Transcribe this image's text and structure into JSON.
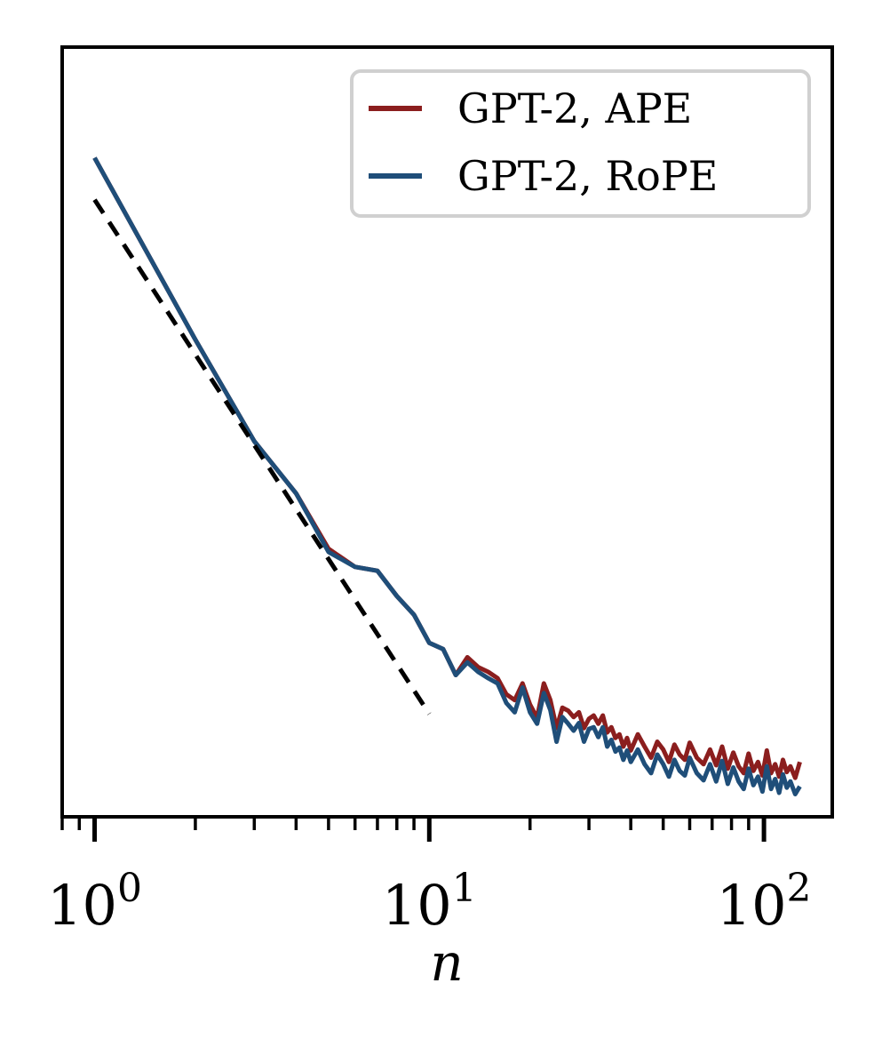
{
  "chart_data": {
    "type": "line",
    "title": "",
    "xlabel": "n",
    "ylabel": "",
    "xscale": "log",
    "yscale": "log",
    "xlim": [
      0.8,
      160
    ],
    "ylim": [
      0.0105,
      1.3
    ],
    "x_ticks": [
      {
        "value": 1,
        "base": "10",
        "exp": "0"
      },
      {
        "value": 10,
        "base": "10",
        "exp": "1"
      },
      {
        "value": 100,
        "base": "10",
        "exp": "2"
      }
    ],
    "legend": {
      "placement": "top-right"
    },
    "colors": {
      "ape": "#8b1e1e",
      "rope": "#1f4e79",
      "reference": "#000000"
    },
    "series": [
      {
        "name": "GPT-2, APE",
        "color": "#8b1e1e",
        "x": [
          1,
          2,
          3,
          4,
          5,
          6,
          7,
          8,
          9,
          10,
          11,
          12,
          13,
          14,
          15,
          16,
          17,
          18,
          19,
          20,
          21,
          22,
          23,
          24,
          25,
          26,
          27,
          28,
          29,
          30,
          31,
          32,
          33,
          34,
          35,
          36,
          37,
          38,
          39,
          40,
          42,
          44,
          46,
          48,
          50,
          52,
          54,
          56,
          58,
          60,
          63,
          66,
          69,
          72,
          75,
          78,
          81,
          84,
          87,
          90,
          93,
          96,
          99,
          102,
          105,
          108,
          111,
          114,
          117,
          120,
          124,
          128
        ],
        "y": [
          0.65,
          0.2083,
          0.1102,
          0.0795,
          0.0562,
          0.0502,
          0.049,
          0.0418,
          0.0372,
          0.0312,
          0.03,
          0.0255,
          0.0285,
          0.0268,
          0.026,
          0.025,
          0.0226,
          0.0218,
          0.0242,
          0.0212,
          0.0195,
          0.0242,
          0.0218,
          0.0183,
          0.0208,
          0.0204,
          0.0196,
          0.0202,
          0.0183,
          0.0194,
          0.0198,
          0.0188,
          0.0198,
          0.0178,
          0.0184,
          0.0172,
          0.0176,
          0.0163,
          0.0172,
          0.0159,
          0.0176,
          0.0163,
          0.0152,
          0.0168,
          0.016,
          0.0148,
          0.0165,
          0.0155,
          0.015,
          0.0167,
          0.0152,
          0.0146,
          0.016,
          0.0145,
          0.0163,
          0.0142,
          0.0157,
          0.0144,
          0.0138,
          0.0156,
          0.014,
          0.0148,
          0.0136,
          0.0159,
          0.0138,
          0.0146,
          0.0135,
          0.015,
          0.0139,
          0.0144,
          0.0134,
          0.0148
        ]
      },
      {
        "name": "GPT-2, RoPE",
        "color": "#1f4e79",
        "x": [
          1,
          2,
          3,
          4,
          5,
          6,
          7,
          8,
          9,
          10,
          11,
          12,
          13,
          14,
          15,
          16,
          17,
          18,
          19,
          20,
          21,
          22,
          23,
          24,
          25,
          26,
          27,
          28,
          29,
          30,
          31,
          32,
          33,
          34,
          35,
          36,
          37,
          38,
          39,
          40,
          42,
          44,
          46,
          48,
          50,
          52,
          54,
          56,
          58,
          60,
          63,
          66,
          69,
          72,
          75,
          78,
          81,
          84,
          87,
          90,
          93,
          96,
          99,
          102,
          105,
          108,
          111,
          114,
          117,
          120,
          124,
          128
        ],
        "y": [
          0.65,
          0.2083,
          0.1102,
          0.0795,
          0.0551,
          0.0502,
          0.049,
          0.0418,
          0.0372,
          0.0312,
          0.03,
          0.0255,
          0.0276,
          0.026,
          0.025,
          0.0242,
          0.0214,
          0.0202,
          0.0236,
          0.0202,
          0.0188,
          0.0228,
          0.0205,
          0.0168,
          0.0196,
          0.0188,
          0.018,
          0.0189,
          0.0168,
          0.0182,
          0.0184,
          0.0173,
          0.0184,
          0.0163,
          0.017,
          0.0158,
          0.0162,
          0.015,
          0.0159,
          0.0148,
          0.016,
          0.0146,
          0.0138,
          0.0155,
          0.0146,
          0.0135,
          0.015,
          0.014,
          0.0136,
          0.0152,
          0.0138,
          0.0132,
          0.0146,
          0.0131,
          0.0149,
          0.0129,
          0.0143,
          0.0131,
          0.0125,
          0.0142,
          0.0128,
          0.0135,
          0.0123,
          0.0144,
          0.0125,
          0.0133,
          0.0122,
          0.0137,
          0.0126,
          0.0131,
          0.0121,
          0.0127
        ]
      }
    ],
    "reference_line": {
      "style": "dashed",
      "x": [
        1,
        10
      ],
      "y": [
        0.5,
        0.02
      ]
    }
  }
}
